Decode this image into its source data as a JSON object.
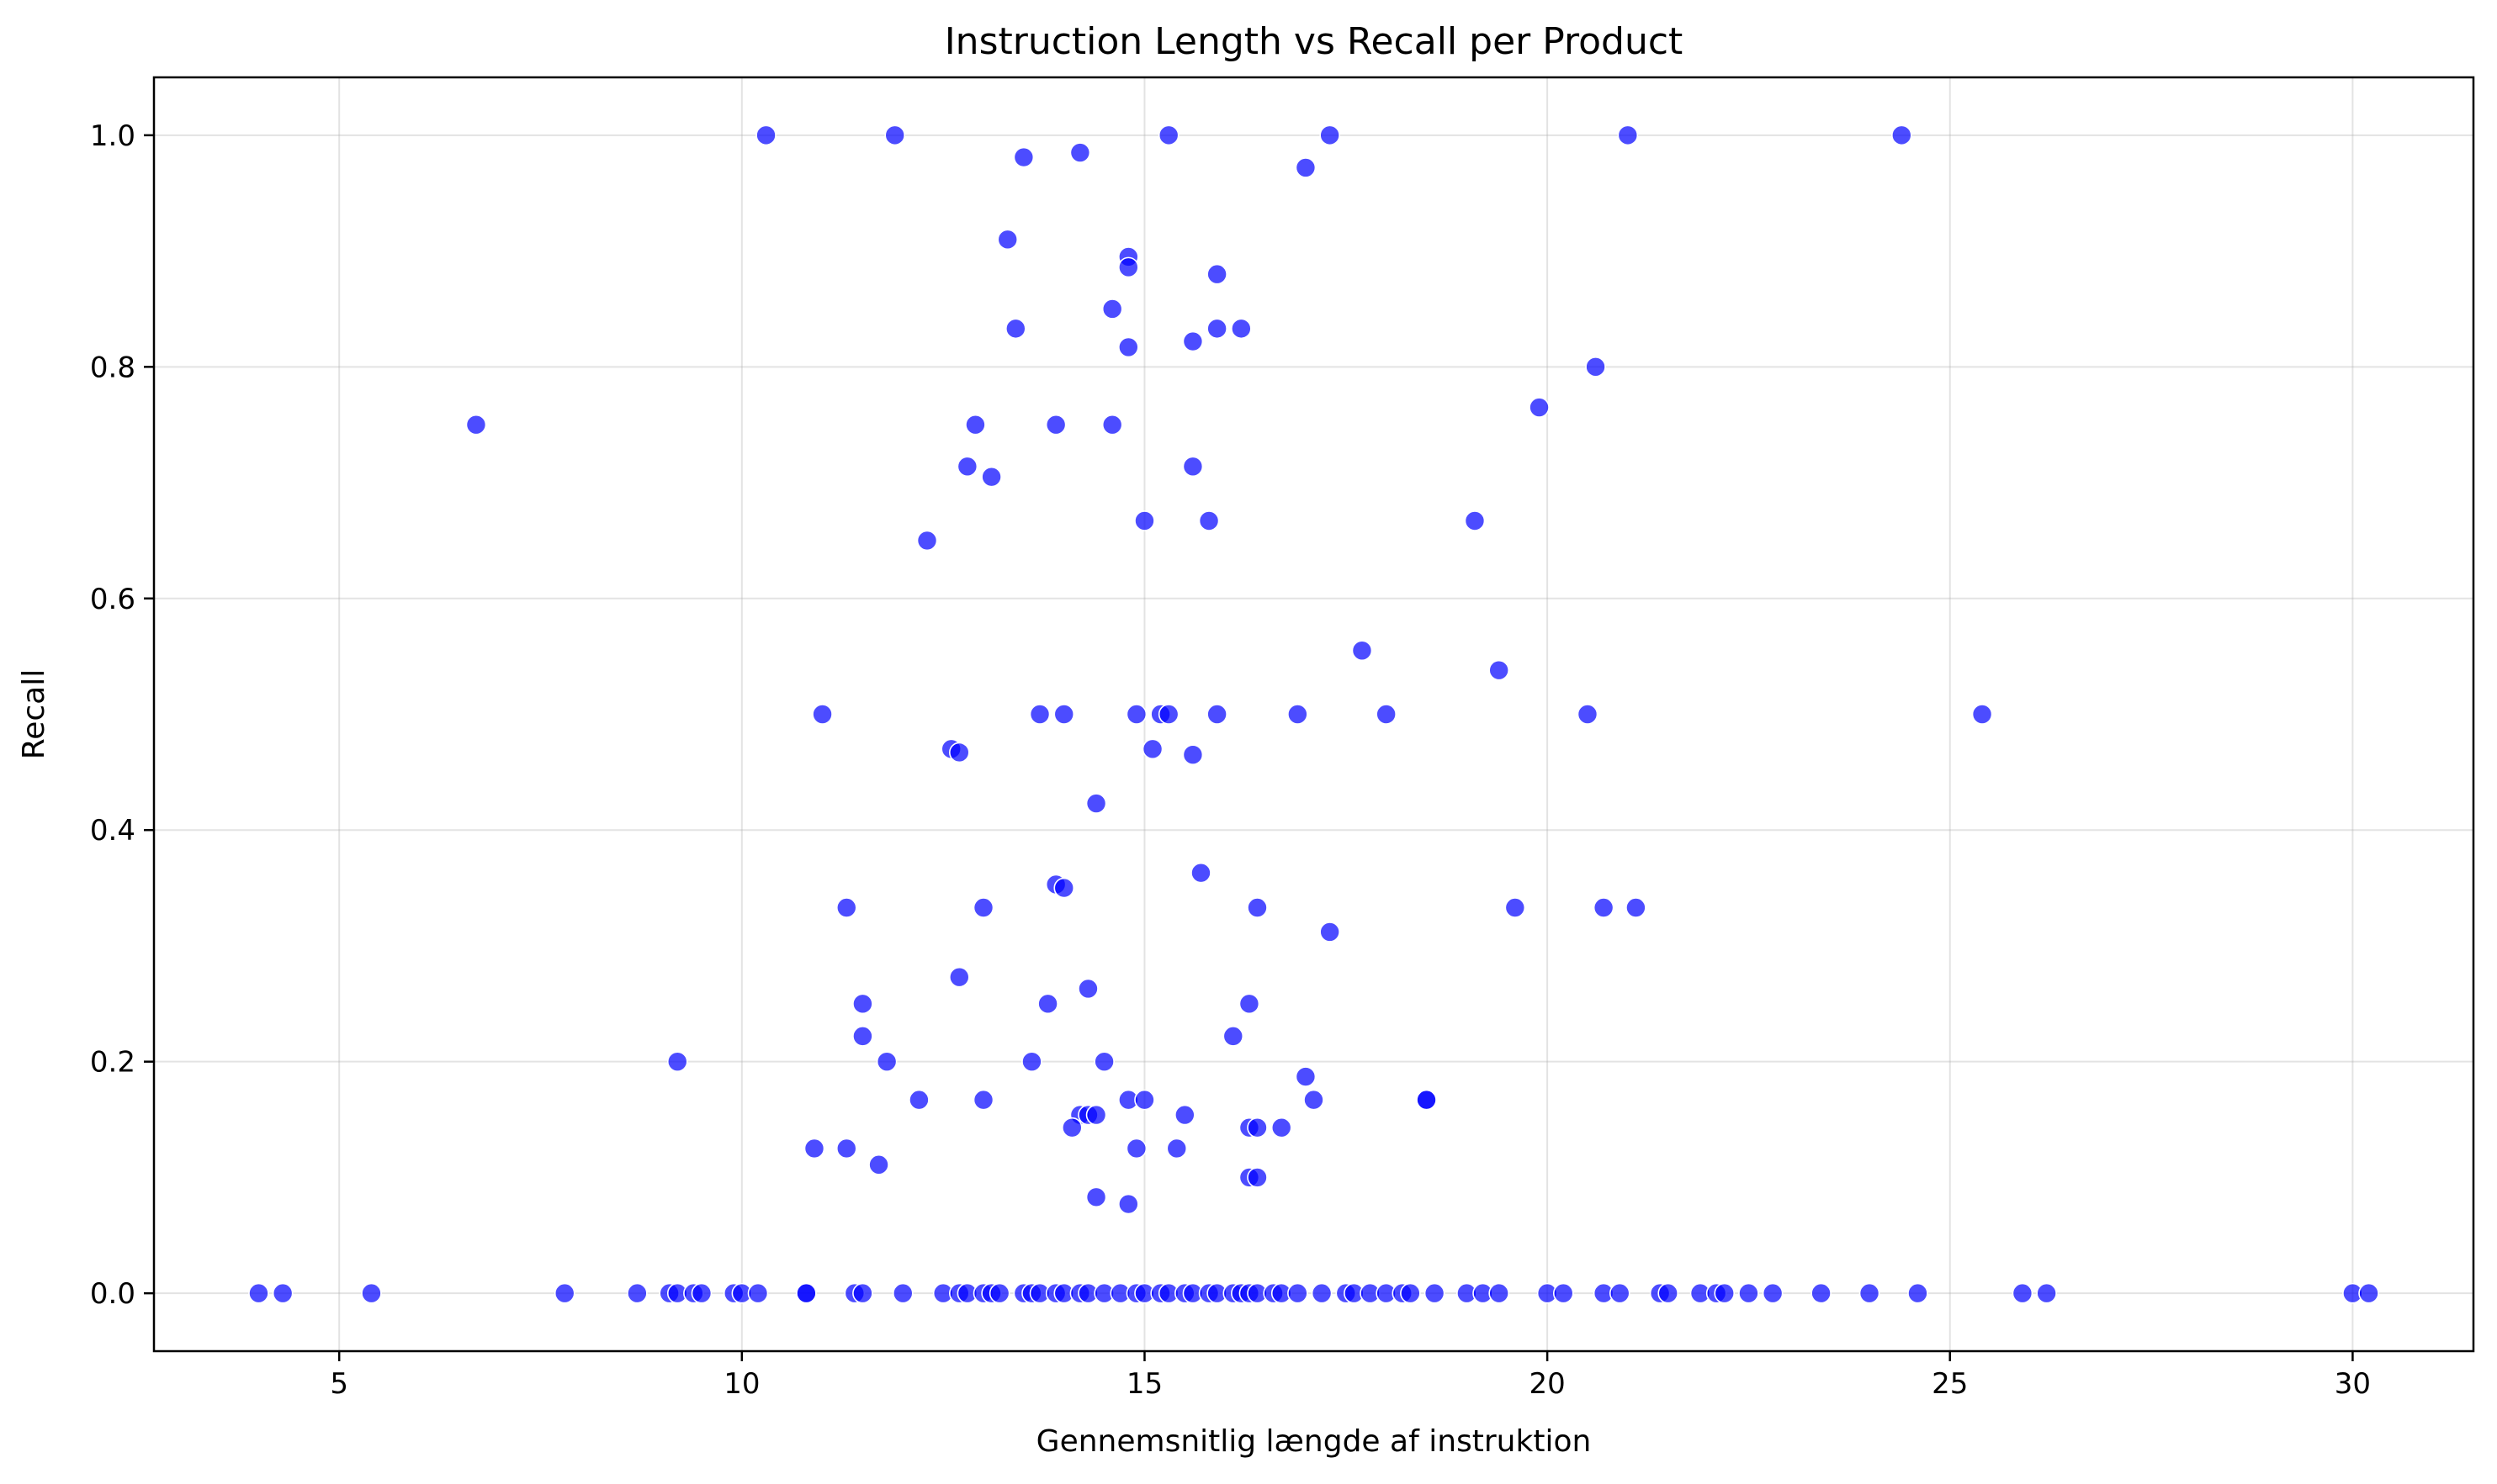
{
  "colors": {
    "point": "#0000ff",
    "point_opacity": 0.7,
    "grid": "#b0b0b0",
    "background": "#ffffff"
  },
  "chart_data": {
    "type": "scatter",
    "title": "Instruction Length vs Recall per Product",
    "xlabel": "Gennemsnitlig længde af instruktion",
    "ylabel": "Recall",
    "xlim": [
      2.7,
      31.5
    ],
    "ylim": [
      -0.05,
      1.05
    ],
    "xticks": [
      5,
      10,
      15,
      20,
      25,
      30
    ],
    "xtick_labels": [
      "5",
      "10",
      "15",
      "20",
      "25",
      "30"
    ],
    "yticks": [
      0.0,
      0.2,
      0.4,
      0.6,
      0.8,
      1.0
    ],
    "ytick_labels": [
      "0.0",
      "0.2",
      "0.4",
      "0.6",
      "0.8",
      "1.0"
    ],
    "grid": true,
    "points": [
      {
        "x": 10.3,
        "y": 1.0
      },
      {
        "x": 11.9,
        "y": 1.0
      },
      {
        "x": 15.3,
        "y": 1.0
      },
      {
        "x": 17.3,
        "y": 1.0
      },
      {
        "x": 21.0,
        "y": 1.0
      },
      {
        "x": 24.4,
        "y": 1.0
      },
      {
        "x": 13.5,
        "y": 0.981
      },
      {
        "x": 14.2,
        "y": 0.985
      },
      {
        "x": 17.0,
        "y": 0.972
      },
      {
        "x": 13.3,
        "y": 0.91
      },
      {
        "x": 14.8,
        "y": 0.895
      },
      {
        "x": 14.8,
        "y": 0.886
      },
      {
        "x": 15.9,
        "y": 0.88
      },
      {
        "x": 14.6,
        "y": 0.85
      },
      {
        "x": 13.4,
        "y": 0.833
      },
      {
        "x": 15.9,
        "y": 0.833
      },
      {
        "x": 16.2,
        "y": 0.833
      },
      {
        "x": 14.8,
        "y": 0.817
      },
      {
        "x": 15.6,
        "y": 0.822
      },
      {
        "x": 20.6,
        "y": 0.8
      },
      {
        "x": 6.7,
        "y": 0.75
      },
      {
        "x": 12.9,
        "y": 0.75
      },
      {
        "x": 13.9,
        "y": 0.75
      },
      {
        "x": 14.6,
        "y": 0.75
      },
      {
        "x": 19.9,
        "y": 0.765
      },
      {
        "x": 12.8,
        "y": 0.714
      },
      {
        "x": 15.6,
        "y": 0.714
      },
      {
        "x": 13.1,
        "y": 0.705
      },
      {
        "x": 15.0,
        "y": 0.667
      },
      {
        "x": 15.8,
        "y": 0.667
      },
      {
        "x": 19.1,
        "y": 0.667
      },
      {
        "x": 12.3,
        "y": 0.65
      },
      {
        "x": 17.7,
        "y": 0.555
      },
      {
        "x": 19.4,
        "y": 0.538
      },
      {
        "x": 11.0,
        "y": 0.5
      },
      {
        "x": 13.7,
        "y": 0.5
      },
      {
        "x": 14.0,
        "y": 0.5
      },
      {
        "x": 14.9,
        "y": 0.5
      },
      {
        "x": 15.2,
        "y": 0.5
      },
      {
        "x": 15.3,
        "y": 0.5
      },
      {
        "x": 15.9,
        "y": 0.5
      },
      {
        "x": 16.9,
        "y": 0.5
      },
      {
        "x": 18.0,
        "y": 0.5
      },
      {
        "x": 20.5,
        "y": 0.5
      },
      {
        "x": 25.4,
        "y": 0.5
      },
      {
        "x": 12.6,
        "y": 0.47
      },
      {
        "x": 12.7,
        "y": 0.467
      },
      {
        "x": 15.1,
        "y": 0.47
      },
      {
        "x": 15.6,
        "y": 0.465
      },
      {
        "x": 14.4,
        "y": 0.423
      },
      {
        "x": 15.7,
        "y": 0.363
      },
      {
        "x": 13.9,
        "y": 0.353
      },
      {
        "x": 14.0,
        "y": 0.35
      },
      {
        "x": 11.3,
        "y": 0.333
      },
      {
        "x": 13.0,
        "y": 0.333
      },
      {
        "x": 16.4,
        "y": 0.333
      },
      {
        "x": 19.6,
        "y": 0.333
      },
      {
        "x": 20.7,
        "y": 0.333
      },
      {
        "x": 21.1,
        "y": 0.333
      },
      {
        "x": 17.3,
        "y": 0.312
      },
      {
        "x": 12.7,
        "y": 0.273
      },
      {
        "x": 14.3,
        "y": 0.263
      },
      {
        "x": 11.5,
        "y": 0.25
      },
      {
        "x": 13.8,
        "y": 0.25
      },
      {
        "x": 16.3,
        "y": 0.25
      },
      {
        "x": 11.5,
        "y": 0.222
      },
      {
        "x": 16.1,
        "y": 0.222
      },
      {
        "x": 9.2,
        "y": 0.2
      },
      {
        "x": 11.8,
        "y": 0.2
      },
      {
        "x": 13.6,
        "y": 0.2
      },
      {
        "x": 14.5,
        "y": 0.2
      },
      {
        "x": 17.0,
        "y": 0.187
      },
      {
        "x": 12.2,
        "y": 0.167
      },
      {
        "x": 13.0,
        "y": 0.167
      },
      {
        "x": 14.8,
        "y": 0.167
      },
      {
        "x": 15.0,
        "y": 0.167
      },
      {
        "x": 17.1,
        "y": 0.167
      },
      {
        "x": 18.5,
        "y": 0.167
      },
      {
        "x": 18.5,
        "y": 0.167
      },
      {
        "x": 14.2,
        "y": 0.154
      },
      {
        "x": 14.3,
        "y": 0.154
      },
      {
        "x": 14.4,
        "y": 0.154
      },
      {
        "x": 15.5,
        "y": 0.154
      },
      {
        "x": 14.1,
        "y": 0.143
      },
      {
        "x": 16.3,
        "y": 0.143
      },
      {
        "x": 16.4,
        "y": 0.143
      },
      {
        "x": 16.7,
        "y": 0.143
      },
      {
        "x": 10.9,
        "y": 0.125
      },
      {
        "x": 11.3,
        "y": 0.125
      },
      {
        "x": 14.9,
        "y": 0.125
      },
      {
        "x": 15.4,
        "y": 0.125
      },
      {
        "x": 11.7,
        "y": 0.111
      },
      {
        "x": 16.3,
        "y": 0.1
      },
      {
        "x": 16.4,
        "y": 0.1
      },
      {
        "x": 14.4,
        "y": 0.083
      },
      {
        "x": 14.8,
        "y": 0.077
      },
      {
        "x": 4.0,
        "y": 0.0
      },
      {
        "x": 4.3,
        "y": 0.0
      },
      {
        "x": 5.4,
        "y": 0.0
      },
      {
        "x": 7.8,
        "y": 0.0
      },
      {
        "x": 8.7,
        "y": 0.0
      },
      {
        "x": 9.1,
        "y": 0.0
      },
      {
        "x": 9.2,
        "y": 0.0
      },
      {
        "x": 9.4,
        "y": 0.0
      },
      {
        "x": 9.5,
        "y": 0.0
      },
      {
        "x": 9.9,
        "y": 0.0
      },
      {
        "x": 10.0,
        "y": 0.0
      },
      {
        "x": 10.2,
        "y": 0.0
      },
      {
        "x": 10.8,
        "y": 0.0
      },
      {
        "x": 10.8,
        "y": 0.0
      },
      {
        "x": 11.4,
        "y": 0.0
      },
      {
        "x": 11.5,
        "y": 0.0
      },
      {
        "x": 12.0,
        "y": 0.0
      },
      {
        "x": 12.5,
        "y": 0.0
      },
      {
        "x": 12.7,
        "y": 0.0
      },
      {
        "x": 12.8,
        "y": 0.0
      },
      {
        "x": 13.0,
        "y": 0.0
      },
      {
        "x": 13.1,
        "y": 0.0
      },
      {
        "x": 13.2,
        "y": 0.0
      },
      {
        "x": 13.5,
        "y": 0.0
      },
      {
        "x": 13.6,
        "y": 0.0
      },
      {
        "x": 13.7,
        "y": 0.0
      },
      {
        "x": 13.9,
        "y": 0.0
      },
      {
        "x": 14.0,
        "y": 0.0
      },
      {
        "x": 14.2,
        "y": 0.0
      },
      {
        "x": 14.3,
        "y": 0.0
      },
      {
        "x": 14.5,
        "y": 0.0
      },
      {
        "x": 14.7,
        "y": 0.0
      },
      {
        "x": 14.9,
        "y": 0.0
      },
      {
        "x": 15.0,
        "y": 0.0
      },
      {
        "x": 15.2,
        "y": 0.0
      },
      {
        "x": 15.3,
        "y": 0.0
      },
      {
        "x": 15.5,
        "y": 0.0
      },
      {
        "x": 15.6,
        "y": 0.0
      },
      {
        "x": 15.8,
        "y": 0.0
      },
      {
        "x": 15.9,
        "y": 0.0
      },
      {
        "x": 16.1,
        "y": 0.0
      },
      {
        "x": 16.2,
        "y": 0.0
      },
      {
        "x": 16.3,
        "y": 0.0
      },
      {
        "x": 16.4,
        "y": 0.0
      },
      {
        "x": 16.6,
        "y": 0.0
      },
      {
        "x": 16.7,
        "y": 0.0
      },
      {
        "x": 16.9,
        "y": 0.0
      },
      {
        "x": 17.2,
        "y": 0.0
      },
      {
        "x": 17.5,
        "y": 0.0
      },
      {
        "x": 17.6,
        "y": 0.0
      },
      {
        "x": 17.8,
        "y": 0.0
      },
      {
        "x": 18.0,
        "y": 0.0
      },
      {
        "x": 18.2,
        "y": 0.0
      },
      {
        "x": 18.3,
        "y": 0.0
      },
      {
        "x": 18.6,
        "y": 0.0
      },
      {
        "x": 19.0,
        "y": 0.0
      },
      {
        "x": 19.2,
        "y": 0.0
      },
      {
        "x": 19.4,
        "y": 0.0
      },
      {
        "x": 20.0,
        "y": 0.0
      },
      {
        "x": 20.2,
        "y": 0.0
      },
      {
        "x": 20.7,
        "y": 0.0
      },
      {
        "x": 20.9,
        "y": 0.0
      },
      {
        "x": 21.4,
        "y": 0.0
      },
      {
        "x": 21.5,
        "y": 0.0
      },
      {
        "x": 21.9,
        "y": 0.0
      },
      {
        "x": 22.1,
        "y": 0.0
      },
      {
        "x": 22.2,
        "y": 0.0
      },
      {
        "x": 22.5,
        "y": 0.0
      },
      {
        "x": 22.8,
        "y": 0.0
      },
      {
        "x": 23.4,
        "y": 0.0
      },
      {
        "x": 24.0,
        "y": 0.0
      },
      {
        "x": 24.6,
        "y": 0.0
      },
      {
        "x": 25.9,
        "y": 0.0
      },
      {
        "x": 26.2,
        "y": 0.0
      },
      {
        "x": 30.0,
        "y": 0.0
      },
      {
        "x": 30.2,
        "y": 0.0
      }
    ]
  }
}
